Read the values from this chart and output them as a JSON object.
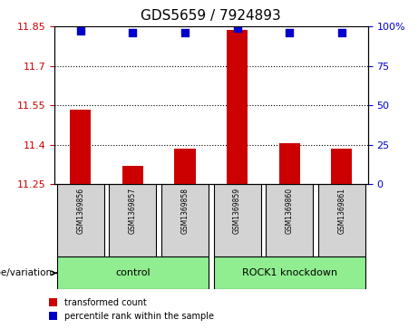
{
  "title": "GDS5659 / 7924893",
  "samples": [
    "GSM1369856",
    "GSM1369857",
    "GSM1369858",
    "GSM1369859",
    "GSM1369860",
    "GSM1369861"
  ],
  "bar_values": [
    11.535,
    11.32,
    11.385,
    11.835,
    11.405,
    11.385
  ],
  "percentile_values": [
    97,
    96,
    96,
    99,
    96,
    96
  ],
  "ylim_left": [
    11.25,
    11.85
  ],
  "yticks_left": [
    11.25,
    11.4,
    11.55,
    11.7,
    11.85
  ],
  "ytick_labels_left": [
    "11.25",
    "11.4",
    "11.55",
    "11.7",
    "11.85"
  ],
  "ylim_right": [
    0,
    100
  ],
  "yticks_right": [
    0,
    25,
    50,
    75,
    100
  ],
  "ytick_labels_right": [
    "0",
    "25",
    "50",
    "75",
    "100%"
  ],
  "bar_color": "#cc0000",
  "dot_color": "#0000cc",
  "bar_bottom": 11.25,
  "groups": [
    {
      "label": "control",
      "indices": [
        0,
        1,
        2
      ],
      "color": "#90ee90"
    },
    {
      "label": "ROCK1 knockdown",
      "indices": [
        3,
        4,
        5
      ],
      "color": "#90ee90"
    }
  ],
  "group_label_prefix": "genotype/variation",
  "legend_items": [
    {
      "color": "#cc0000",
      "label": "transformed count"
    },
    {
      "color": "#0000cc",
      "label": "percentile rank within the sample"
    }
  ],
  "grid_color": "black",
  "grid_linestyle": "dotted",
  "sample_box_color": "#d3d3d3",
  "bg_color": "white"
}
